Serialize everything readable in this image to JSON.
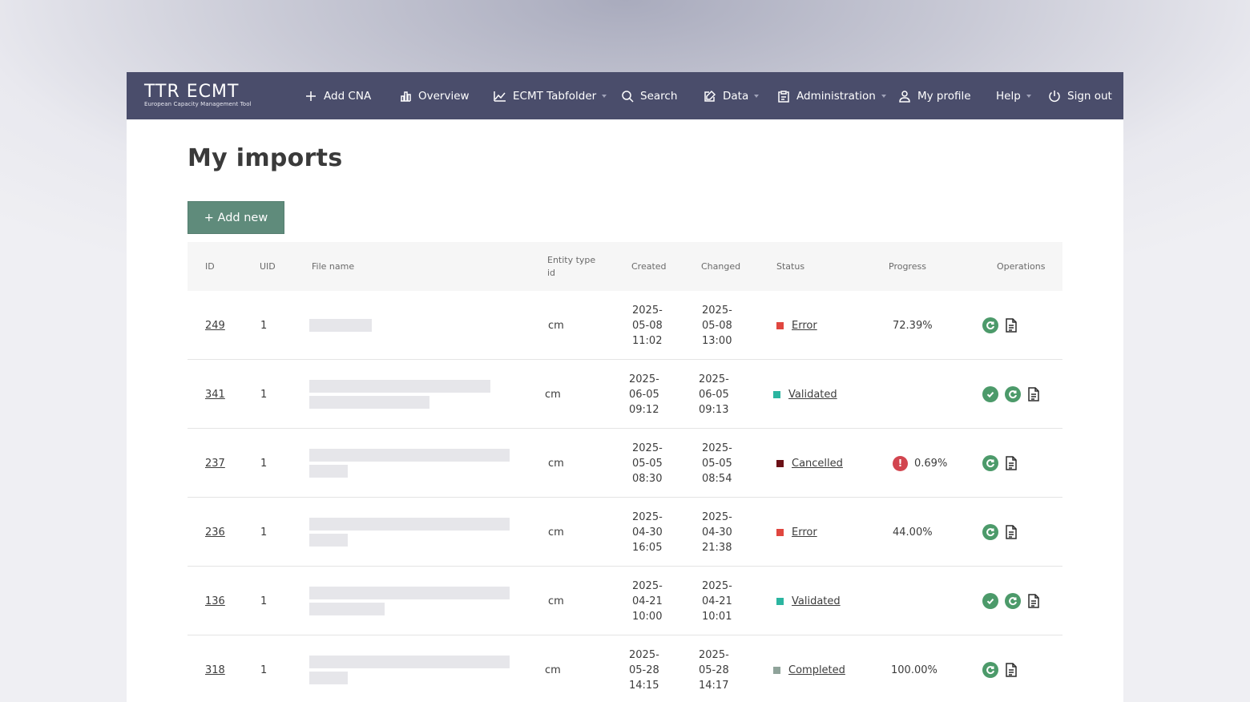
{
  "app": {
    "logo_text": "TTR ECMT",
    "logo_subtitle": "European Capacity Management Tool"
  },
  "nav": {
    "add_cna": "Add CNA",
    "overview": "Overview",
    "ecmt_tabfolder": "ECMT Tabfolder",
    "search": "Search",
    "data": "Data",
    "administration": "Administration",
    "my_profile": "My profile",
    "help": "Help",
    "sign_out": "Sign out"
  },
  "page": {
    "title": "My imports",
    "add_new_label": "+ Add new"
  },
  "table": {
    "headers": {
      "id": "ID",
      "uid": "UID",
      "file_name": "File name",
      "entity_type_id": "Entity type id",
      "created": "Created",
      "changed": "Changed",
      "status": "Status",
      "progress": "Progress",
      "operations": "Operations"
    },
    "rows": [
      {
        "id": "249",
        "uid": "1",
        "entity": "cm",
        "created_a": "2025-",
        "created_b": "05-08",
        "created_c": "11:02",
        "changed_a": "2025-",
        "changed_b": "05-08",
        "changed_c": "13:00",
        "status": "Error",
        "status_color": "#e0463f",
        "progress": "72.39%",
        "ops": [
          "refresh",
          "document"
        ]
      },
      {
        "id": "341",
        "uid": "1",
        "entity": "cm",
        "created_a": "2025-",
        "created_b": "06-05",
        "created_c": "09:12",
        "changed_a": "2025-",
        "changed_b": "06-05",
        "changed_c": "09:13",
        "status": "Validated",
        "status_color": "#2bb5a0",
        "progress": "",
        "ops": [
          "approve",
          "refresh",
          "document"
        ]
      },
      {
        "id": "237",
        "uid": "1",
        "entity": "cm",
        "created_a": "2025-",
        "created_b": "05-05",
        "created_c": "08:30",
        "changed_a": "2025-",
        "changed_b": "05-05",
        "changed_c": "08:54",
        "status": "Cancelled",
        "status_color": "#6b1016",
        "progress": "0.69%",
        "progress_warning": "!",
        "ops": [
          "refresh",
          "document"
        ]
      },
      {
        "id": "236",
        "uid": "1",
        "entity": "cm",
        "created_a": "2025-",
        "created_b": "04-30",
        "created_c": "16:05",
        "changed_a": "2025-",
        "changed_b": "04-30",
        "changed_c": "21:38",
        "status": "Error",
        "status_color": "#e0463f",
        "progress": "44.00%",
        "ops": [
          "refresh",
          "document"
        ]
      },
      {
        "id": "136",
        "uid": "1",
        "entity": "cm",
        "created_a": "2025-",
        "created_b": "04-21",
        "created_c": "10:00",
        "changed_a": "2025-",
        "changed_b": "04-21",
        "changed_c": "10:01",
        "status": "Validated",
        "status_color": "#2bb5a0",
        "progress": "",
        "ops": [
          "approve",
          "refresh",
          "document"
        ]
      },
      {
        "id": "318",
        "uid": "1",
        "entity": "cm",
        "created_a": "2025-",
        "created_b": "05-28",
        "created_c": "14:15",
        "changed_a": "2025-",
        "changed_b": "05-28",
        "changed_c": "14:17",
        "status": "Completed",
        "status_color": "#8fa39a",
        "progress": "100.00%",
        "ops": [
          "refresh",
          "document"
        ]
      }
    ]
  }
}
